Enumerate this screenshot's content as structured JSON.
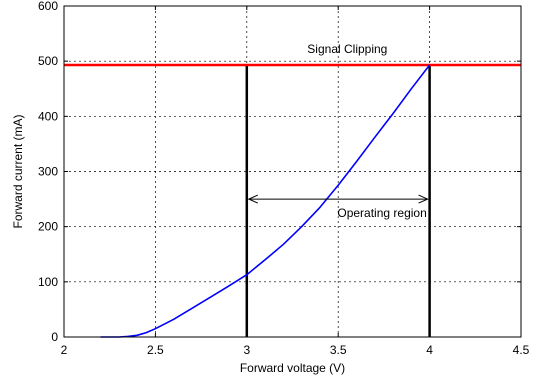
{
  "chart_data": {
    "type": "line",
    "title": "",
    "xlabel": "Forward voltage (V)",
    "ylabel": "Forward current (mA)",
    "xlim": [
      2,
      4.5
    ],
    "ylim": [
      0,
      600
    ],
    "x_ticks": [
      "2",
      "2.5",
      "3",
      "3.5",
      "4",
      "4.5"
    ],
    "y_ticks": [
      "0",
      "100",
      "200",
      "300",
      "400",
      "500",
      "600"
    ],
    "grid": true,
    "series": [
      {
        "color": "#0000ff",
        "x": [
          2.2,
          2.3,
          2.35,
          2.4,
          2.45,
          2.5,
          2.6,
          2.7,
          2.8,
          2.9,
          3.0,
          3.1,
          3.2,
          3.3,
          3.4,
          3.5,
          3.6,
          3.7,
          3.8,
          3.9,
          4.0
        ],
        "y": [
          0,
          0,
          1,
          3,
          8,
          15,
          32,
          52,
          72,
          92,
          113,
          140,
          168,
          200,
          235,
          275,
          318,
          362,
          405,
          450,
          493
        ]
      }
    ],
    "hlines": [
      {
        "y": 493,
        "color": "#ff0000",
        "label": "Signal Clipping"
      }
    ],
    "vlines": [
      {
        "x": 3,
        "color": "#000000"
      },
      {
        "x": 4,
        "color": "#000000"
      }
    ],
    "arrow": {
      "x_start": 3,
      "x_end": 4,
      "y": 250,
      "label": "Operating region"
    }
  }
}
